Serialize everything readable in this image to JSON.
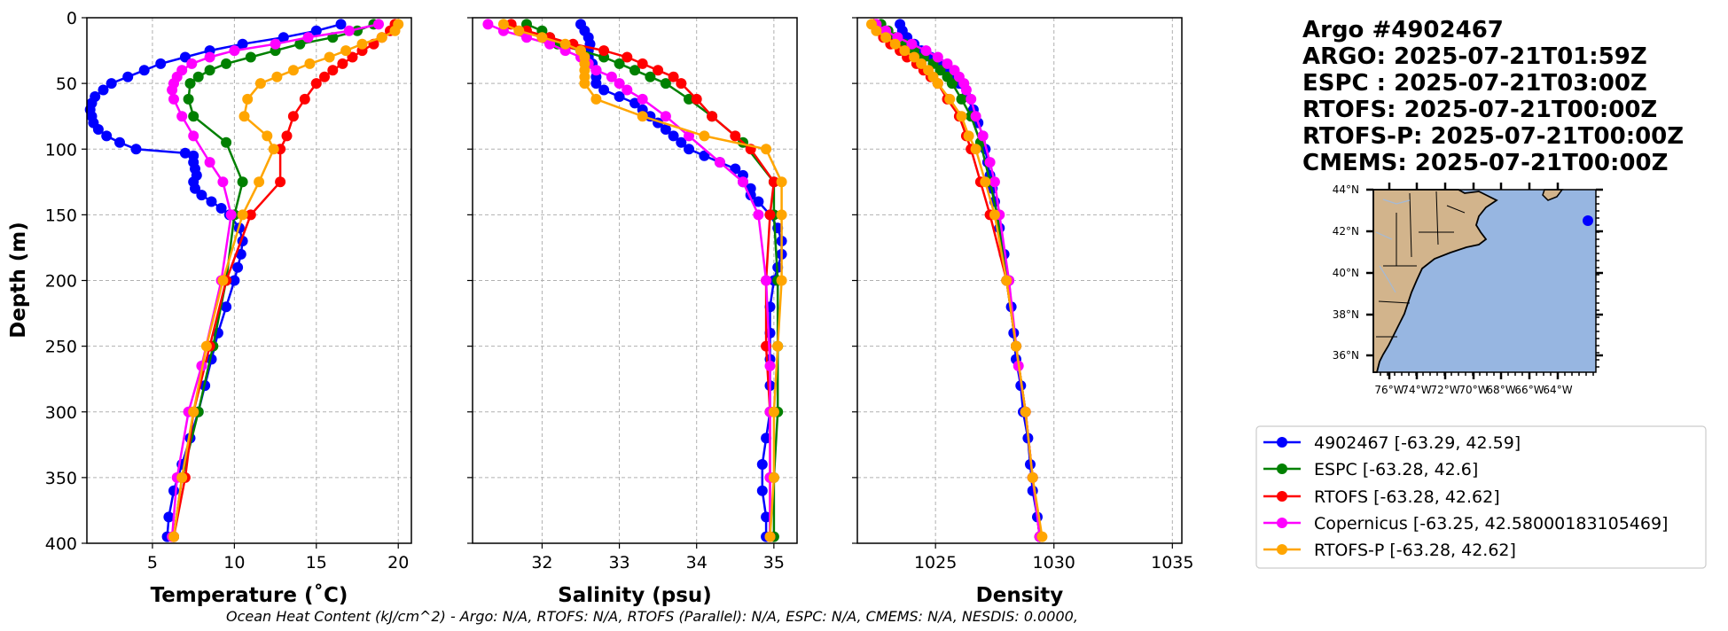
{
  "titles": [
    "Argo #4902467",
    "ARGO: 2025-07-21T01:59Z",
    "ESPC : 2025-07-21T03:00Z",
    "RTOFS: 2025-07-21T00:00Z",
    "RTOFS-P: 2025-07-21T00:00Z",
    "CMEMS: 2025-07-21T00:00Z"
  ],
  "footer": "Ocean Heat Content (kJ/cm^2) - Argo: N/A,  RTOFS: N/A,  RTOFS (Parallel): N/A,  ESPC: N/A,  CMEMS: N/A,  NESDIS: 0.0000,",
  "map": {
    "lat_ticks": [
      "44°N",
      "42°N",
      "40°N",
      "38°N",
      "36°N"
    ],
    "lon_ticks": [
      "76°W",
      "74°W",
      "72°W",
      "70°W",
      "68°W",
      "66°W",
      "64°W"
    ],
    "float_position": [
      -63.29,
      42.59
    ],
    "land_color": "#d2b48c",
    "ocean_color": "#97b6e1"
  },
  "legend": [
    {
      "label": "4902467 [-63.29, 42.59]",
      "color": "#0000ff"
    },
    {
      "label": "ESPC [-63.28, 42.6]",
      "color": "#008000"
    },
    {
      "label": "RTOFS [-63.28, 42.62]",
      "color": "#ff0000"
    },
    {
      "label": "Copernicus [-63.25, 42.58000183105469]",
      "color": "#ff00ff"
    },
    {
      "label": "RTOFS-P [-63.28, 42.62]",
      "color": "#ffa500"
    }
  ],
  "chart_data": [
    {
      "type": "line",
      "xlabel": "Temperature (˚C)",
      "ylabel": "Depth (m)",
      "xlim": [
        1.0,
        20.8
      ],
      "ylim": [
        400,
        0
      ],
      "xticks": [
        5,
        10,
        15,
        20
      ],
      "yticks": [
        0,
        50,
        100,
        150,
        200,
        250,
        300,
        350,
        400
      ],
      "grid": true,
      "series": [
        {
          "name": "4902467",
          "color": "#0000ff",
          "depth": [
            5,
            10,
            15,
            20,
            25,
            30,
            35,
            40,
            45,
            50,
            55,
            60,
            65,
            70,
            75,
            80,
            85,
            90,
            95,
            100,
            103,
            105,
            110,
            115,
            120,
            125,
            130,
            135,
            140,
            145,
            150,
            160,
            170,
            180,
            190,
            200,
            220,
            240,
            260,
            280,
            300,
            320,
            340,
            360,
            380,
            395
          ],
          "values": [
            16.5,
            15.0,
            13.0,
            10.5,
            8.5,
            7.0,
            5.5,
            4.5,
            3.5,
            2.5,
            2.0,
            1.5,
            1.3,
            1.2,
            1.3,
            1.4,
            1.7,
            2.2,
            3.0,
            4.0,
            7.0,
            7.5,
            7.5,
            7.6,
            7.7,
            7.5,
            7.6,
            8.0,
            8.6,
            9.2,
            9.7,
            10.3,
            10.5,
            10.4,
            10.2,
            10.0,
            9.5,
            9.0,
            8.6,
            8.2,
            7.8,
            7.3,
            6.8,
            6.3,
            6.0,
            5.9
          ]
        },
        {
          "name": "ESPC",
          "color": "#008000",
          "depth": [
            5,
            10,
            15,
            20,
            25,
            30,
            35,
            40,
            45,
            50,
            62,
            75,
            95,
            125,
            150,
            200,
            250,
            300,
            350,
            395
          ],
          "values": [
            18.5,
            17.5,
            16.0,
            14.0,
            12.5,
            11.0,
            9.5,
            8.5,
            7.8,
            7.3,
            7.2,
            7.5,
            9.5,
            10.5,
            10.0,
            9.5,
            8.7,
            7.8,
            6.8,
            6.3
          ]
        },
        {
          "name": "RTOFS",
          "color": "#ff0000",
          "depth": [
            5,
            10,
            15,
            20,
            25,
            30,
            35,
            40,
            45,
            50,
            62,
            75,
            90,
            100,
            125,
            150,
            200,
            250,
            300,
            350,
            395
          ],
          "values": [
            19.8,
            19.5,
            19.0,
            18.5,
            17.8,
            17.2,
            16.6,
            16.0,
            15.5,
            15.0,
            14.3,
            13.6,
            13.2,
            12.8,
            12.8,
            11.0,
            9.5,
            8.5,
            7.5,
            7.0,
            6.3
          ]
        },
        {
          "name": "Copernicus",
          "color": "#ff00ff",
          "depth": [
            5,
            10,
            15,
            20,
            25,
            30,
            35,
            40,
            45,
            50,
            55,
            62,
            75,
            90,
            110,
            125,
            150,
            200,
            265,
            300,
            350,
            395
          ],
          "values": [
            18.8,
            17.0,
            14.5,
            12.5,
            10.0,
            8.5,
            7.4,
            6.8,
            6.5,
            6.3,
            6.2,
            6.3,
            6.8,
            7.5,
            8.5,
            9.3,
            9.8,
            9.2,
            8.0,
            7.2,
            6.5,
            6.2
          ]
        },
        {
          "name": "RTOFS-P",
          "color": "#ffa500",
          "depth": [
            5,
            10,
            15,
            20,
            25,
            30,
            35,
            40,
            45,
            50,
            62,
            75,
            90,
            100,
            125,
            150,
            200,
            250,
            300,
            350,
            395
          ],
          "values": [
            20.0,
            19.8,
            19.0,
            17.8,
            16.8,
            15.8,
            14.6,
            13.6,
            12.6,
            11.6,
            10.8,
            10.6,
            12.0,
            12.4,
            11.5,
            10.5,
            9.3,
            8.3,
            7.5,
            6.8,
            6.3
          ]
        }
      ]
    },
    {
      "type": "line",
      "xlabel": "Salinity (psu)",
      "xlim": [
        31.1,
        35.3
      ],
      "ylim": [
        400,
        0
      ],
      "xticks": [
        32,
        33,
        34,
        35
      ],
      "grid": true,
      "series": [
        {
          "name": "4902467",
          "color": "#0000ff",
          "depth": [
            5,
            10,
            15,
            20,
            25,
            30,
            35,
            40,
            45,
            50,
            55,
            60,
            65,
            70,
            75,
            80,
            85,
            90,
            95,
            100,
            105,
            110,
            115,
            120,
            125,
            130,
            135,
            140,
            150,
            160,
            170,
            180,
            190,
            200,
            220,
            240,
            260,
            280,
            300,
            320,
            340,
            360,
            380,
            395
          ],
          "values": [
            32.5,
            32.55,
            32.6,
            32.62,
            32.6,
            32.6,
            32.65,
            32.7,
            32.7,
            32.7,
            32.8,
            33.0,
            33.2,
            33.3,
            33.4,
            33.5,
            33.6,
            33.7,
            33.8,
            33.9,
            34.1,
            34.3,
            34.5,
            34.6,
            34.6,
            34.7,
            34.7,
            34.8,
            34.95,
            35.05,
            35.1,
            35.1,
            35.05,
            35.0,
            34.95,
            34.95,
            34.95,
            34.95,
            34.95,
            34.9,
            34.85,
            34.85,
            34.9,
            34.9
          ]
        },
        {
          "name": "ESPC",
          "color": "#008000",
          "depth": [
            5,
            10,
            15,
            20,
            25,
            30,
            35,
            40,
            45,
            50,
            62,
            75,
            95,
            125,
            150,
            200,
            250,
            300,
            350,
            395
          ],
          "values": [
            31.8,
            32.0,
            32.1,
            32.2,
            32.5,
            32.8,
            33.0,
            33.2,
            33.4,
            33.6,
            33.9,
            34.2,
            34.6,
            35.0,
            35.0,
            35.05,
            35.05,
            35.05,
            35.0,
            35.0
          ]
        },
        {
          "name": "RTOFS",
          "color": "#ff0000",
          "depth": [
            5,
            10,
            15,
            20,
            25,
            30,
            35,
            40,
            45,
            50,
            62,
            75,
            90,
            100,
            125,
            150,
            200,
            250,
            300,
            350,
            395
          ],
          "values": [
            31.6,
            31.8,
            32.1,
            32.4,
            32.8,
            33.1,
            33.3,
            33.5,
            33.7,
            33.8,
            34.0,
            34.2,
            34.5,
            34.7,
            35.0,
            34.95,
            34.9,
            34.9,
            34.95,
            34.95,
            34.95
          ]
        },
        {
          "name": "Copernicus",
          "color": "#ff00ff",
          "depth": [
            5,
            10,
            15,
            20,
            25,
            30,
            35,
            40,
            45,
            50,
            55,
            62,
            75,
            90,
            110,
            125,
            150,
            200,
            265,
            300,
            350,
            395
          ],
          "values": [
            31.3,
            31.5,
            31.8,
            32.1,
            32.3,
            32.5,
            32.6,
            32.7,
            32.9,
            33.0,
            33.1,
            33.3,
            33.6,
            33.9,
            34.3,
            34.6,
            34.8,
            34.9,
            34.95,
            34.95,
            34.95,
            34.95
          ]
        },
        {
          "name": "RTOFS-P",
          "color": "#ffa500",
          "depth": [
            5,
            10,
            15,
            20,
            25,
            30,
            35,
            40,
            45,
            50,
            62,
            75,
            90,
            100,
            125,
            150,
            200,
            250,
            300,
            350,
            395
          ],
          "values": [
            31.5,
            31.7,
            32.0,
            32.3,
            32.5,
            32.55,
            32.55,
            32.55,
            32.55,
            32.55,
            32.7,
            33.3,
            34.1,
            34.9,
            35.1,
            35.1,
            35.1,
            35.05,
            35.0,
            35.0,
            34.95
          ]
        }
      ]
    },
    {
      "type": "line",
      "xlabel": "Density",
      "xlim": [
        1021.7,
        1035.4
      ],
      "ylim": [
        400,
        0
      ],
      "xticks": [
        1025,
        1030,
        1035
      ],
      "grid": true,
      "series": [
        {
          "name": "4902467",
          "color": "#0000ff",
          "depth": [
            5,
            10,
            15,
            20,
            25,
            30,
            35,
            40,
            45,
            50,
            60,
            70,
            80,
            90,
            100,
            110,
            120,
            130,
            140,
            150,
            160,
            180,
            200,
            220,
            240,
            260,
            280,
            300,
            320,
            340,
            360,
            380,
            395
          ],
          "values": [
            1023.5,
            1023.6,
            1023.8,
            1024.1,
            1024.4,
            1024.8,
            1025.2,
            1025.5,
            1025.8,
            1026.0,
            1026.3,
            1026.6,
            1026.8,
            1027.0,
            1027.1,
            1027.2,
            1027.3,
            1027.4,
            1027.5,
            1027.6,
            1027.7,
            1027.9,
            1028.1,
            1028.2,
            1028.3,
            1028.4,
            1028.6,
            1028.7,
            1028.9,
            1029.0,
            1029.1,
            1029.3,
            1029.4
          ]
        },
        {
          "name": "ESPC",
          "color": "#008000",
          "depth": [
            5,
            10,
            15,
            20,
            25,
            30,
            35,
            40,
            45,
            50,
            62,
            75,
            95,
            125,
            150,
            200,
            250,
            300,
            350,
            395
          ],
          "values": [
            1022.7,
            1023.0,
            1023.3,
            1023.7,
            1024.1,
            1024.5,
            1024.9,
            1025.2,
            1025.5,
            1025.7,
            1026.1,
            1026.5,
            1026.9,
            1027.3,
            1027.6,
            1028.0,
            1028.4,
            1028.8,
            1029.1,
            1029.4
          ]
        },
        {
          "name": "RTOFS",
          "color": "#ff0000",
          "depth": [
            5,
            10,
            15,
            20,
            25,
            30,
            35,
            40,
            45,
            50,
            62,
            75,
            90,
            100,
            125,
            150,
            200,
            250,
            300,
            350,
            395
          ],
          "values": [
            1022.4,
            1022.6,
            1022.8,
            1023.1,
            1023.5,
            1023.8,
            1024.2,
            1024.5,
            1024.8,
            1025.1,
            1025.5,
            1026.0,
            1026.3,
            1026.5,
            1026.9,
            1027.3,
            1028.0,
            1028.4,
            1028.8,
            1029.1,
            1029.4
          ]
        },
        {
          "name": "Copernicus",
          "color": "#ff00ff",
          "depth": [
            5,
            10,
            15,
            20,
            25,
            30,
            35,
            40,
            45,
            50,
            55,
            62,
            75,
            90,
            110,
            125,
            150,
            200,
            265,
            300,
            350,
            395
          ],
          "values": [
            1022.5,
            1022.9,
            1023.4,
            1024.0,
            1024.6,
            1025.1,
            1025.5,
            1025.8,
            1026.0,
            1026.2,
            1026.3,
            1026.5,
            1026.7,
            1027.0,
            1027.3,
            1027.5,
            1027.7,
            1028.1,
            1028.5,
            1028.8,
            1029.1,
            1029.4
          ]
        },
        {
          "name": "RTOFS-P",
          "color": "#ffa500",
          "depth": [
            5,
            10,
            15,
            20,
            25,
            30,
            35,
            40,
            45,
            50,
            62,
            75,
            90,
            100,
            125,
            150,
            200,
            250,
            300,
            350,
            395
          ],
          "values": [
            1022.3,
            1022.5,
            1022.9,
            1023.3,
            1023.7,
            1024.1,
            1024.4,
            1024.7,
            1024.9,
            1025.1,
            1025.6,
            1026.1,
            1026.4,
            1026.7,
            1027.1,
            1027.5,
            1028.0,
            1028.4,
            1028.8,
            1029.1,
            1029.5
          ]
        }
      ]
    }
  ]
}
